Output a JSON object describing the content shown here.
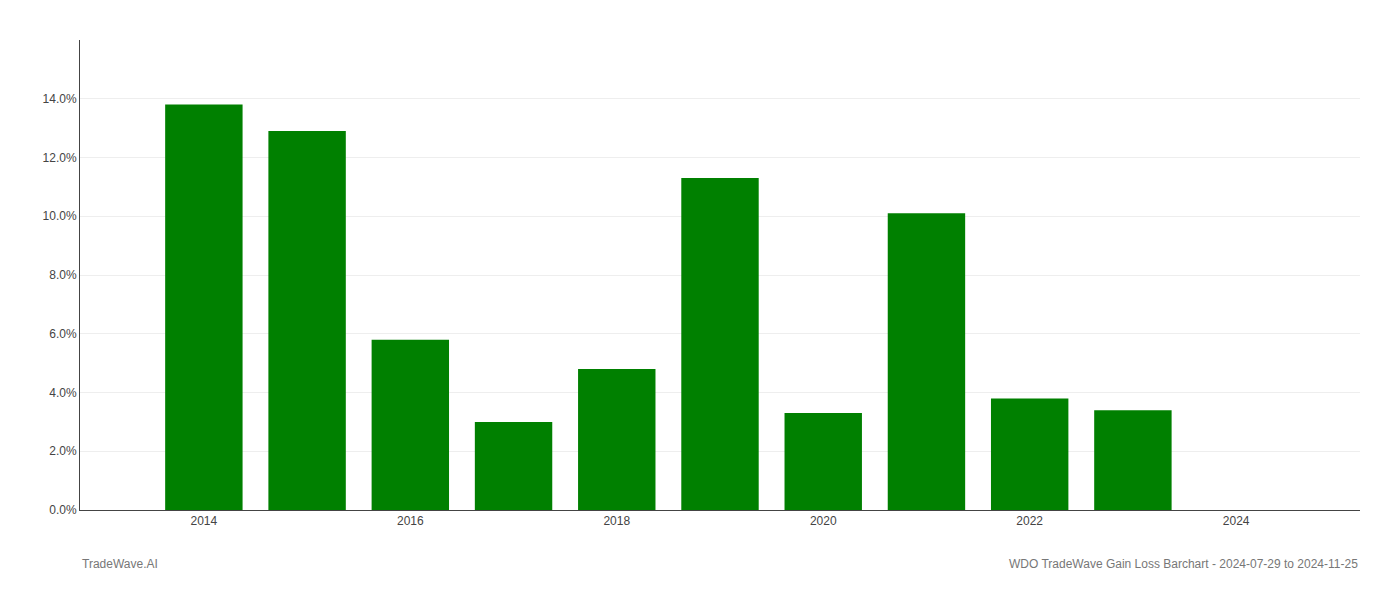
{
  "chart_data": {
    "type": "bar",
    "x": [
      2014,
      2015,
      2016,
      2017,
      2018,
      2019,
      2020,
      2021,
      2022,
      2023
    ],
    "values": [
      0.138,
      0.129,
      0.058,
      0.03,
      0.048,
      0.113,
      0.033,
      0.101,
      0.038,
      0.034
    ],
    "color": "#008000",
    "xlim": [
      2012.8,
      2025.2
    ],
    "xticks": [
      2014,
      2016,
      2018,
      2020,
      2022,
      2024
    ],
    "ylim": [
      0,
      0.16
    ],
    "yticks": [
      {
        "value": 0,
        "label": "0.0%"
      },
      {
        "value": 0.02,
        "label": "2.0%"
      },
      {
        "value": 0.04,
        "label": "4.0%"
      },
      {
        "value": 0.06,
        "label": "6.0%"
      },
      {
        "value": 0.08,
        "label": "8.0%"
      },
      {
        "value": 0.1,
        "label": "10.0%"
      },
      {
        "value": 0.12,
        "label": "12.0%"
      },
      {
        "value": 0.14,
        "label": "14.0%"
      }
    ],
    "grid": true,
    "annotations": [
      "TradeWave.AI",
      "WDO TradeWave Gain Loss Barchart - 2024-07-29 to 2024-11-25"
    ]
  }
}
